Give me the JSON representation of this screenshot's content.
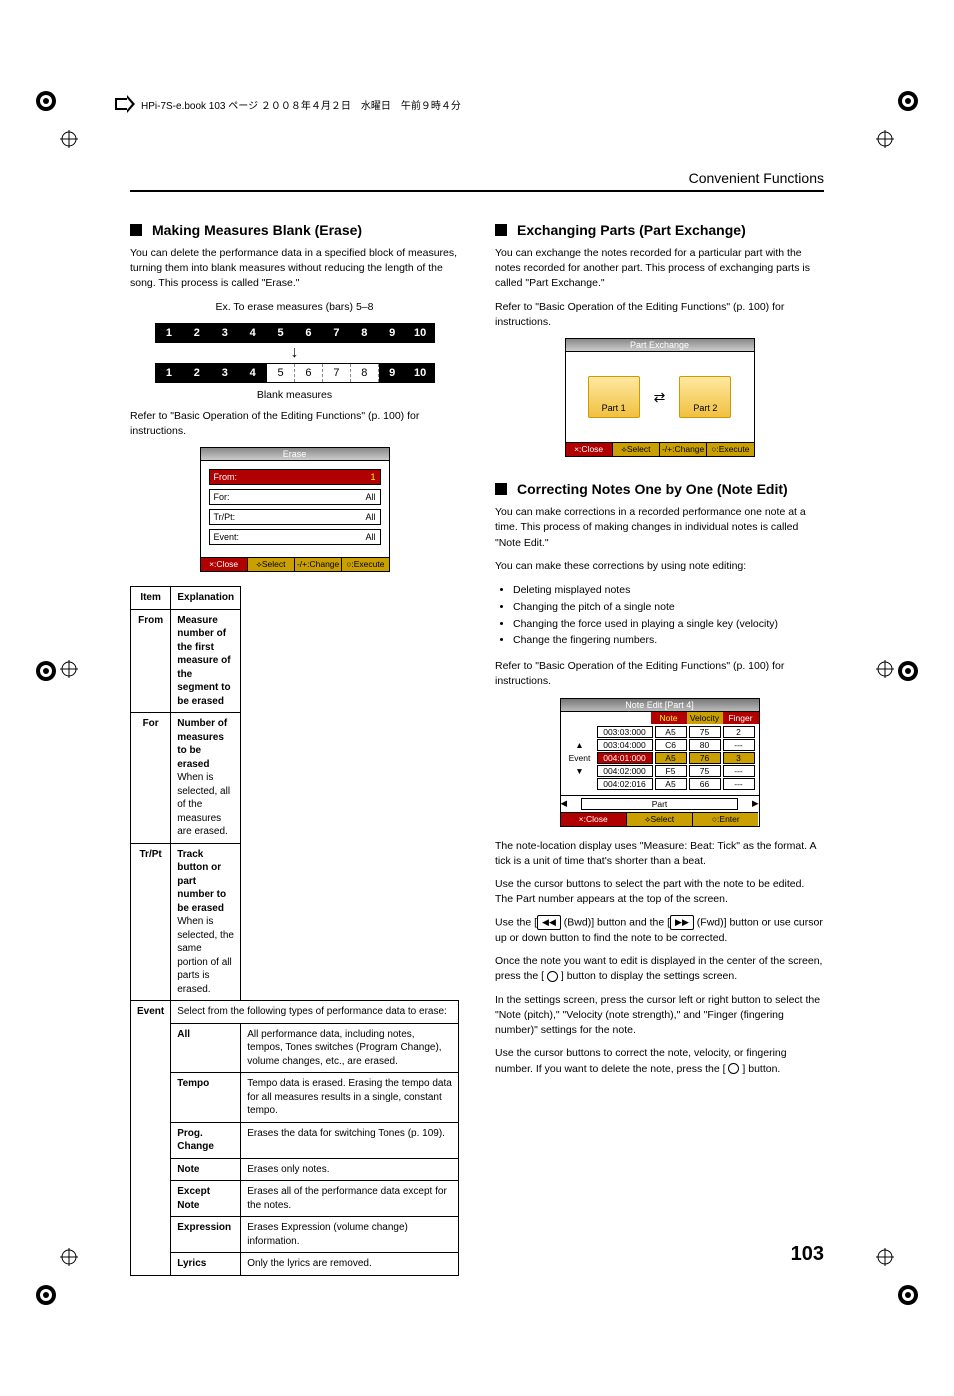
{
  "book_header": "HPi-7S-e.book  103 ページ  ２００８年４月２日　水曜日　午前９時４分",
  "page_section_title": "Convenient Functions",
  "page_number": "103",
  "left": {
    "h1": "Making Measures Blank (Erase)",
    "p1": "You can delete the performance data in a specified block of measures, turning them into blank measures without reducing the length of the song. This process is called \"Erase.\"",
    "caption1": "Ex. To erase measures (bars) 5–8",
    "diagram_cells": [
      "1",
      "2",
      "3",
      "4",
      "5",
      "6",
      "7",
      "8",
      "9",
      "10"
    ],
    "blank_label": "Blank measures",
    "p2": "Refer to \"Basic Operation of the Editing Functions\" (p. 100) for instructions.",
    "lcd": {
      "title": "Erase",
      "rows": [
        {
          "k": "From:",
          "v": "1",
          "active": true
        },
        {
          "k": "For:",
          "v": "All",
          "active": false
        },
        {
          "k": "Tr/Pt:",
          "v": "All",
          "active": false
        },
        {
          "k": "Event:",
          "v": "All",
          "active": false
        }
      ],
      "foot": [
        "×:Close",
        "⟡Select",
        "-/+:Change",
        "○:Execute"
      ]
    },
    "table": {
      "head": [
        "Item",
        "Explanation"
      ],
      "rows": [
        {
          "item": "From",
          "exp": "Measure number of the first measure of the segment to be erased",
          "bold": true
        },
        {
          "item": "For",
          "exp": "Number of measures to be erased\nWhen <All> is selected, all of the measures are erased.",
          "bold_first": true
        },
        {
          "item": "Tr/Pt",
          "exp": "Track button or part number to be erased\nWhen <All> is selected, the same portion of all parts is erased.",
          "bold_first": true
        }
      ],
      "event_intro": "Select from the following types of performance data to erase:",
      "event_label": "Event",
      "event_rows": [
        {
          "k": "All",
          "v": "All performance data, including notes, tempos, Tones switches (Program Change), volume changes, etc., are erased."
        },
        {
          "k": "Tempo",
          "v": "Tempo data is erased. Erasing the tempo data for all measures results in a single, constant tempo."
        },
        {
          "k": "Prog. Change",
          "v": "Erases the data for switching Tones (p. 109)."
        },
        {
          "k": "Note",
          "v": "Erases only notes."
        },
        {
          "k": "Except Note",
          "v": "Erases all of the performance data except for the notes."
        },
        {
          "k": "Expression",
          "v": "Erases Expression (volume change) information."
        },
        {
          "k": "Lyrics",
          "v": "Only the lyrics are removed."
        }
      ]
    }
  },
  "right": {
    "h1": "Exchanging Parts (Part Exchange)",
    "p1": "You can exchange the notes recorded for a particular part with the notes recorded for another part. This process of exchanging parts is called \"Part Exchange.\"",
    "p2": "Refer to \"Basic Operation of the Editing Functions\" (p. 100) for instructions.",
    "partex": {
      "title": "Part Exchange",
      "a": "Part 1",
      "b": "Part 2",
      "foot": [
        "×:Close",
        "⟡Select",
        "-/+:Change",
        "○:Execute"
      ]
    },
    "h2": "Correcting Notes One by One (Note Edit)",
    "p3": "You can make corrections in a recorded performance one note at a time. This process of making changes in individual notes is called \"Note Edit.\"",
    "p4": "You can make these corrections by using note editing:",
    "bullets": [
      "Deleting misplayed notes",
      "Changing the pitch of a single note",
      "Changing the force used in playing a single key (velocity)",
      "Change the fingering numbers."
    ],
    "p5": "Refer to \"Basic Operation of the Editing Functions\" (p. 100) for instructions.",
    "noteedit": {
      "title": "Note Edit [Part 4]",
      "head": [
        "Note",
        "Velocity",
        "Finger"
      ],
      "rows": [
        {
          "lab": "",
          "t": "003:03:000",
          "n": "A5",
          "v": "75",
          "f": "2"
        },
        {
          "lab": "▲",
          "t": "003:04:000",
          "n": "C6",
          "v": "80",
          "f": "---"
        },
        {
          "lab": "Event",
          "t": "004:01:000",
          "n": "A5",
          "v": "76",
          "f": "3",
          "sel": true
        },
        {
          "lab": "▼",
          "t": "004:02:000",
          "n": "F5",
          "v": "75",
          "f": "---"
        },
        {
          "lab": "",
          "t": "004:02:016",
          "n": "A5",
          "v": "66",
          "f": "---"
        }
      ],
      "part_label": "Part",
      "foot": [
        "×:Close",
        "⟡Select",
        "○:Enter"
      ]
    },
    "p6": "The note-location display uses \"Measure: Beat: Tick\" as the format. A tick is a unit of time that's shorter than a beat.",
    "p7": "Use the cursor buttons to select the part with the note to be edited. The Part number appears at the top of the screen.",
    "p8a": "Use the [",
    "p8b": " (Bwd)] button and the [",
    "p8c": " (Fwd)] button or use cursor up or down button to find the note to be corrected.",
    "p9a": "Once the note you want to edit is displayed in the center of the screen, press the [ ",
    "p9b": " ] button to display the settings screen.",
    "p10": "In the settings screen, press the cursor left or right button to select the \"Note (pitch),\" \"Velocity (note strength),\" and \"Finger (fingering number)\" settings for the note.",
    "p11a": "Use the cursor buttons to correct the note, velocity, or fingering number. If you want to delete the note, press the [ ",
    "p11b": " ] button."
  }
}
